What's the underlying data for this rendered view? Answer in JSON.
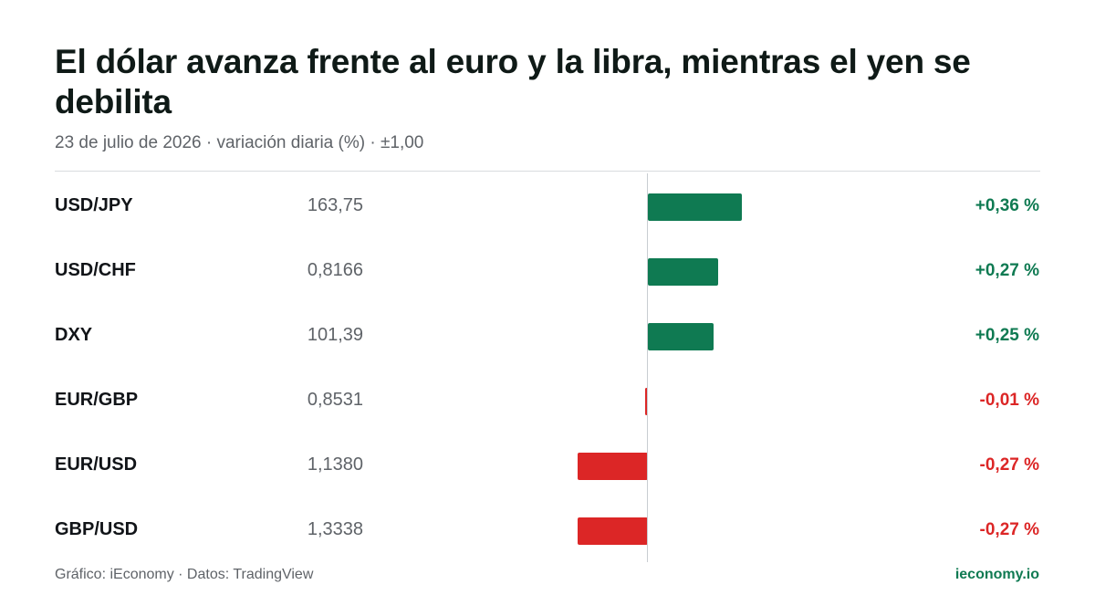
{
  "header": {
    "title": "El dólar avanza frente al euro y la libra, mientras el yen se debilita",
    "subtitle": "23 de julio de 2026 · variación diaria (%) · ±1,00"
  },
  "footer": {
    "source": "Gráfico: iEconomy · Datos: TradingView",
    "brand": "ieconomy.io"
  },
  "colors": {
    "positive": "#0f7a52",
    "negative": "#dc2626"
  },
  "chart_data": {
    "type": "bar",
    "orientation": "horizontal-diverging",
    "categories": [
      "USD/JPY",
      "USD/CHF",
      "DXY",
      "EUR/GBP",
      "EUR/USD",
      "GBP/USD"
    ],
    "prices": [
      "163,75",
      "0,8166",
      "101,39",
      "0,8531",
      "1,1380",
      "1,3338"
    ],
    "values": [
      0.36,
      0.27,
      0.25,
      -0.01,
      -0.27,
      -0.27
    ],
    "labels": [
      "+0,36 %",
      "+0,27 %",
      "+0,25 %",
      "-0,01 %",
      "-0,27 %",
      "-0,27 %"
    ],
    "xlim": [
      -1.0,
      1.0
    ],
    "grid": false,
    "legend": "none"
  }
}
